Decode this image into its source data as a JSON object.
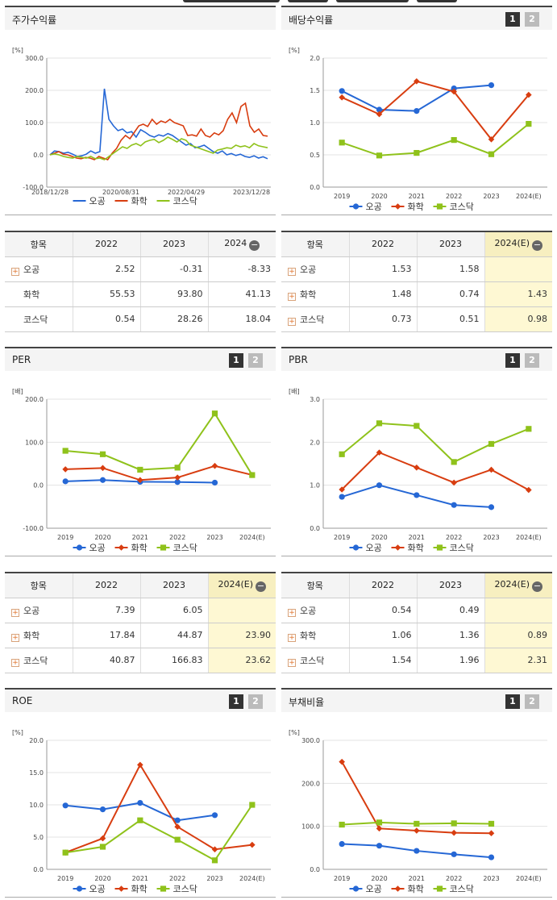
{
  "legend": [
    "오공",
    "화학",
    "코스닥"
  ],
  "colors": {
    "오공": "#2567d5",
    "화학": "#d83d10",
    "코스닥": "#8fc21b"
  },
  "icons": {
    "expand": "plus-icon",
    "collapse": "minus-icon"
  },
  "panels": {
    "stock_return": {
      "title": "주가수익률",
      "chart_data": {
        "type": "line",
        "title": "주가수익률",
        "unit": "[%]",
        "ylim": [
          -100,
          300
        ],
        "yticks": [
          -100,
          0,
          100,
          200,
          300
        ],
        "ytick_labels": [
          "-100.0",
          "0.0",
          "100.0",
          "200.0",
          "300.0"
        ],
        "x_range": [
          "2018/12/28",
          "2024/05/31"
        ],
        "xtick_labels": [
          "2018/12/28",
          "2020/08/31",
          "2022/04/29",
          "2023/12/28"
        ],
        "series": [
          {
            "name": "오공",
            "values": [
              0,
              12,
              10,
              5,
              8,
              2,
              -5,
              -3,
              2,
              12,
              5,
              10,
              205,
              110,
              90,
              75,
              80,
              68,
              72,
              55,
              78,
              70,
              60,
              55,
              62,
              58,
              66,
              60,
              50,
              40,
              30,
              35,
              22,
              25,
              30,
              20,
              10,
              5,
              12,
              0,
              4,
              -2,
              2,
              -5,
              -8,
              -3,
              -10,
              -6,
              -12
            ]
          },
          {
            "name": "화학",
            "values": [
              0,
              5,
              10,
              2,
              0,
              -5,
              -10,
              -12,
              -8,
              -10,
              -15,
              -5,
              -10,
              -15,
              5,
              20,
              45,
              60,
              50,
              70,
              90,
              95,
              88,
              110,
              95,
              105,
              100,
              110,
              100,
              95,
              90,
              60,
              62,
              58,
              80,
              60,
              55,
              68,
              62,
              75,
              110,
              130,
              100,
              150,
              160,
              90,
              70,
              80,
              60,
              58
            ]
          },
          {
            "name": "코스닥",
            "values": [
              0,
              3,
              0,
              -5,
              -8,
              -10,
              -5,
              -8,
              -10,
              -5,
              -12,
              -10,
              -15,
              -5,
              5,
              15,
              25,
              20,
              30,
              35,
              28,
              40,
              45,
              48,
              38,
              45,
              55,
              48,
              40,
              50,
              45,
              30,
              25,
              20,
              15,
              10,
              5,
              15,
              18,
              22,
              20,
              30,
              25,
              28,
              22,
              35,
              28,
              25,
              22
            ]
          }
        ]
      },
      "table": {
        "headers": [
          "항목",
          "2022",
          "2023",
          "2024"
        ],
        "rows": [
          {
            "label": "오공",
            "values": [
              "2.52",
              "-0.31",
              "-8.33"
            ],
            "expandable": true
          },
          {
            "label": "화학",
            "values": [
              "55.53",
              "93.80",
              "41.13"
            ],
            "expandable": false
          },
          {
            "label": "코스닥",
            "values": [
              "0.54",
              "28.26",
              "18.04"
            ],
            "expandable": false
          }
        ]
      }
    },
    "dividend": {
      "title": "배당수익률",
      "buttons": [
        "1",
        "2"
      ],
      "chart_data": {
        "type": "line",
        "title": "배당수익률",
        "unit": "[%]",
        "categories": [
          "2019",
          "2020",
          "2021",
          "2022",
          "2023",
          "2024(E)"
        ],
        "ylim": [
          0,
          2
        ],
        "yticks": [
          0,
          0.5,
          1,
          1.5,
          2
        ],
        "ytick_labels": [
          "0.0",
          "0.5",
          "1.0",
          "1.5",
          "2.0"
        ],
        "series": [
          {
            "name": "오공",
            "values": [
              1.49,
              1.2,
              1.18,
              1.53,
              1.58,
              null
            ]
          },
          {
            "name": "화학",
            "values": [
              1.39,
              1.13,
              1.64,
              1.48,
              0.74,
              1.43
            ]
          },
          {
            "name": "코스닥",
            "values": [
              0.69,
              0.49,
              0.53,
              0.73,
              0.51,
              0.98
            ]
          }
        ]
      },
      "table": {
        "headers": [
          "항목",
          "2022",
          "2023",
          "2024(E)"
        ],
        "rows": [
          {
            "label": "오공",
            "values": [
              "1.53",
              "1.58",
              ""
            ],
            "expandable": true
          },
          {
            "label": "화학",
            "values": [
              "1.48",
              "0.74",
              "1.43"
            ],
            "expandable": true
          },
          {
            "label": "코스닥",
            "values": [
              "0.73",
              "0.51",
              "0.98"
            ],
            "expandable": true
          }
        ]
      }
    },
    "per": {
      "title": "PER",
      "buttons": [
        "1",
        "2"
      ],
      "chart_data": {
        "type": "line",
        "title": "PER",
        "unit": "[배]",
        "categories": [
          "2019",
          "2020",
          "2021",
          "2022",
          "2023",
          "2024(E)"
        ],
        "ylim": [
          -100,
          200
        ],
        "yticks": [
          -100,
          0,
          100,
          200
        ],
        "ytick_labels": [
          "-100.0",
          "0.0",
          "100.0",
          "200.0"
        ],
        "series": [
          {
            "name": "오공",
            "values": [
              9,
              12,
              8,
              7.39,
              6.05,
              null
            ]
          },
          {
            "name": "화학",
            "values": [
              37,
              40,
              12,
              17.84,
              44.87,
              23.9
            ]
          },
          {
            "name": "코스닥",
            "values": [
              80,
              72,
              36,
              40.87,
              166.83,
              23.62
            ]
          }
        ]
      },
      "table": {
        "headers": [
          "항목",
          "2022",
          "2023",
          "2024(E)"
        ],
        "rows": [
          {
            "label": "오공",
            "values": [
              "7.39",
              "6.05",
              ""
            ],
            "expandable": true
          },
          {
            "label": "화학",
            "values": [
              "17.84",
              "44.87",
              "23.90"
            ],
            "expandable": true
          },
          {
            "label": "코스닥",
            "values": [
              "40.87",
              "166.83",
              "23.62"
            ],
            "expandable": true
          }
        ]
      }
    },
    "pbr": {
      "title": "PBR",
      "buttons": [
        "1",
        "2"
      ],
      "chart_data": {
        "type": "line",
        "title": "PBR",
        "unit": "[배]",
        "categories": [
          "2019",
          "2020",
          "2021",
          "2022",
          "2023",
          "2024(E)"
        ],
        "ylim": [
          0,
          3
        ],
        "yticks": [
          0,
          1,
          2,
          3
        ],
        "ytick_labels": [
          "0.0",
          "1.0",
          "2.0",
          "3.0"
        ],
        "series": [
          {
            "name": "오공",
            "values": [
              0.73,
              1.0,
              0.77,
              0.54,
              0.49,
              null
            ]
          },
          {
            "name": "화학",
            "values": [
              0.9,
              1.76,
              1.41,
              1.06,
              1.36,
              0.89
            ]
          },
          {
            "name": "코스닥",
            "values": [
              1.72,
              2.44,
              2.38,
              1.54,
              1.96,
              2.31
            ]
          }
        ]
      },
      "table": {
        "headers": [
          "항목",
          "2022",
          "2023",
          "2024(E)"
        ],
        "rows": [
          {
            "label": "오공",
            "values": [
              "0.54",
              "0.49",
              ""
            ],
            "expandable": true
          },
          {
            "label": "화학",
            "values": [
              "1.06",
              "1.36",
              "0.89"
            ],
            "expandable": true
          },
          {
            "label": "코스닥",
            "values": [
              "1.54",
              "1.96",
              "2.31"
            ],
            "expandable": true
          }
        ]
      }
    },
    "roe": {
      "title": "ROE",
      "buttons": [
        "1",
        "2"
      ],
      "chart_data": {
        "type": "line",
        "title": "ROE",
        "unit": "[%]",
        "categories": [
          "2019",
          "2020",
          "2021",
          "2022",
          "2023",
          "2024(E)"
        ],
        "ylim": [
          0,
          20
        ],
        "yticks": [
          0,
          5,
          10,
          15,
          20
        ],
        "ytick_labels": [
          "0.0",
          "5.0",
          "10.0",
          "15.0",
          "20.0"
        ],
        "series": [
          {
            "name": "오공",
            "values": [
              9.9,
              9.3,
              10.3,
              7.6,
              8.4,
              null
            ]
          },
          {
            "name": "화학",
            "values": [
              2.6,
              4.8,
              16.2,
              6.6,
              3.1,
              3.8
            ]
          },
          {
            "name": "코스닥",
            "values": [
              2.6,
              3.5,
              7.6,
              4.6,
              1.4,
              10.0
            ]
          }
        ]
      }
    },
    "debt": {
      "title": "부채비율",
      "buttons": [
        "1",
        "2"
      ],
      "chart_data": {
        "type": "line",
        "title": "부채비율",
        "unit": "[%]",
        "categories": [
          "2019",
          "2020",
          "2021",
          "2022",
          "2023",
          "2024(E)"
        ],
        "ylim": [
          0,
          300
        ],
        "yticks": [
          0,
          100,
          200,
          300
        ],
        "ytick_labels": [
          "0.0",
          "100.0",
          "200.0",
          "300.0"
        ],
        "series": [
          {
            "name": "오공",
            "values": [
              59,
              55,
              43,
              35,
              28,
              null
            ]
          },
          {
            "name": "화학",
            "values": [
              250,
              95,
              90,
              85,
              84,
              null
            ]
          },
          {
            "name": "코스닥",
            "values": [
              104,
              109,
              106,
              107,
              106,
              null
            ]
          }
        ]
      }
    }
  }
}
